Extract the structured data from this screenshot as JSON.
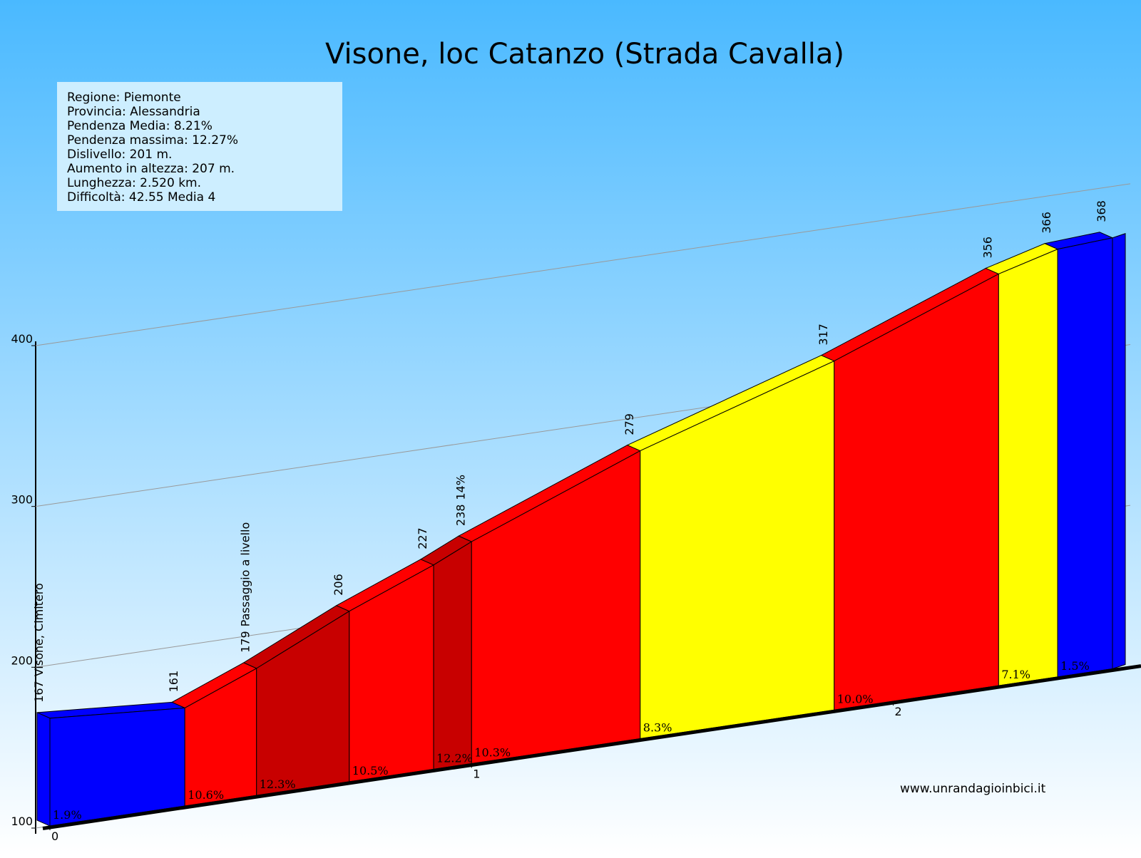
{
  "chart_data": {
    "type": "profile",
    "title": "Visone, loc Catanzo (Strada Cavalla)",
    "info_box": [
      "Regione: Piemonte",
      "Provincia: Alessandria",
      "Pendenza Media: 8.21%",
      "Pendenza massima: 12.27%",
      "Dislivello:   201 m.",
      "Aumento in altezza:   207 m.",
      "Lunghezza:  2.520 km.",
      "Difficoltà: 42.55 Media 4"
    ],
    "x": [
      0,
      0.32,
      0.49,
      0.71,
      0.91,
      1.0,
      1.4,
      1.86,
      2.25,
      2.39,
      2.52
    ],
    "altitudes": [
      167,
      161,
      179,
      206,
      227,
      238,
      279,
      317,
      356,
      366,
      368
    ],
    "place_names": [
      "Visone, Cimitero",
      null,
      "Passaggio a livello",
      null,
      null,
      "14%",
      null,
      null,
      null,
      null,
      null
    ],
    "segments": {
      "values": [
        1.9,
        10.6,
        12.3,
        10.5,
        12.2,
        10.3,
        8.3,
        10.0,
        7.1,
        1.5
      ],
      "value_labels": [
        "1.9%",
        "10.6%",
        "12.3%",
        "10.5%",
        "12.2%",
        "10.3%",
        "8.3%",
        "10.0%",
        "7.1%",
        "1.5%"
      ],
      "colors": [
        "#0000ff",
        "#ff0000",
        "#c80000",
        "#ff0000",
        "#c80000",
        "#ff0000",
        "#ffff00",
        "#ff0000",
        "#ffff00",
        "#0000ff"
      ]
    },
    "xlim": [
      0,
      2.52
    ],
    "xticks": [
      0,
      1,
      2
    ],
    "ylim": [
      100,
      400
    ],
    "yticks": [
      100,
      200,
      300,
      400
    ],
    "grid": true,
    "source": "www.unrandagioinbici.it"
  }
}
